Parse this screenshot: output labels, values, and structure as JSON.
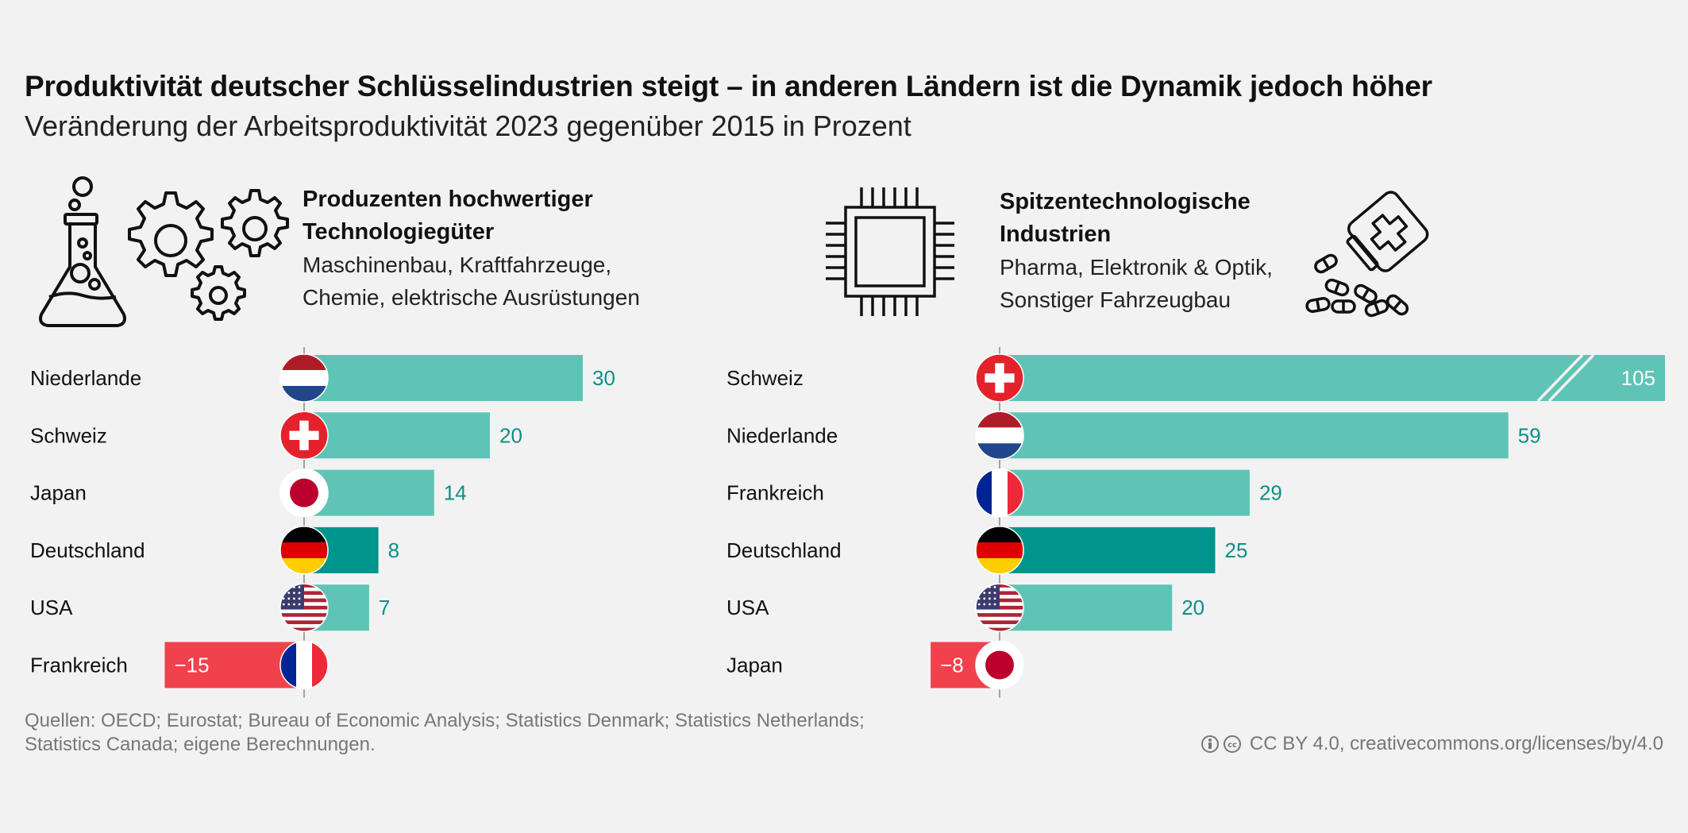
{
  "title": "Produktivität deutscher Schlüsselindustrien steigt – in anderen Ländern ist die Dynamik jedoch höher",
  "subtitle": "Veränderung der Arbeitsproduktivität 2023 gegenüber 2015 in Prozent",
  "panels": [
    {
      "heading_line1": "Produzenten hochwertiger",
      "heading_line2": "Technologiegüter",
      "desc_line1": "Maschinenbau, Kraftfahrzeuge,",
      "desc_line2": "Chemie, elektrische Ausrüstungen",
      "icons": [
        "flask-icon",
        "gears-icon"
      ]
    },
    {
      "heading_line1": "Spitzentechnologische",
      "heading_line2": "Industrien",
      "desc_line1": "Pharma, Elektronik & Optik,",
      "desc_line2": "Sonstiger Fahrzeugbau",
      "icons": [
        "microchip-icon",
        "pills-icon"
      ]
    }
  ],
  "chart_data": [
    {
      "type": "bar",
      "orientation": "horizontal",
      "categories": [
        "Niederlande",
        "Schweiz",
        "Japan",
        "Deutschland",
        "USA",
        "Frankreich"
      ],
      "values": [
        30,
        20,
        14,
        8,
        7,
        -15
      ],
      "value_labels": [
        "30",
        "20",
        "14",
        "8",
        "7",
        "−15"
      ],
      "flags": [
        "netherlands-flag-icon",
        "switzerland-flag-icon",
        "japan-flag-icon",
        "germany-flag-icon",
        "usa-flag-icon",
        "france-flag-icon"
      ],
      "highlight": "Deutschland"
    },
    {
      "type": "bar",
      "orientation": "horizontal",
      "categories": [
        "Schweiz",
        "Niederlande",
        "Frankreich",
        "Deutschland",
        "USA",
        "Japan"
      ],
      "values": [
        105,
        59,
        29,
        25,
        20,
        -8
      ],
      "value_labels": [
        "105",
        "59",
        "29",
        "25",
        "20",
        "−8"
      ],
      "flags": [
        "switzerland-flag-icon",
        "netherlands-flag-icon",
        "france-flag-icon",
        "germany-flag-icon",
        "usa-flag-icon",
        "japan-flag-icon"
      ],
      "highlight": "Deutschland",
      "axis_break": "Schweiz"
    }
  ],
  "colors": {
    "positive": "#5ec5b6",
    "highlight": "#00958c",
    "negative": "#f0414c",
    "label": "#0d8f88",
    "background": "#f2f2f2"
  },
  "source_line1": "Quellen: OECD; Eurostat; Bureau of Economic Analysis; Statistics Denmark; Statistics Netherlands;",
  "source_line2": "Statistics Canada; eigene Berechnungen.",
  "license": "CC BY 4.0, creativecommons.org/licenses/by/4.0"
}
